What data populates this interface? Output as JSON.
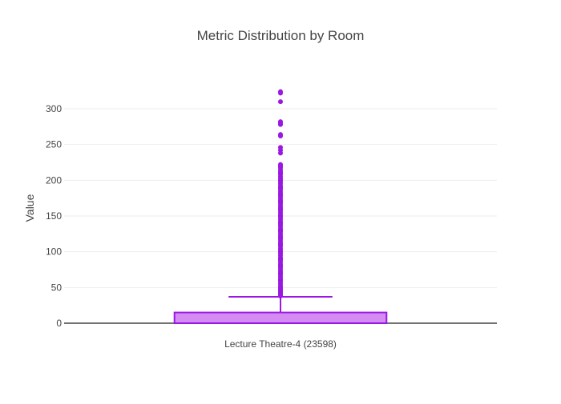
{
  "chart_data": {
    "type": "box",
    "title": "Metric Distribution by Room",
    "xlabel": "",
    "ylabel": "Value",
    "ylim": [
      -5,
      360
    ],
    "yticks": [
      0,
      50,
      100,
      150,
      200,
      250,
      300
    ],
    "grid": true,
    "legend": "none",
    "categories": [
      "Lecture Theatre-4 (23598)"
    ],
    "series": [
      {
        "category": "Lecture Theatre-4 (23598)",
        "min": 0,
        "q1": 0,
        "median": 0,
        "q3": 15,
        "whisker_high": 37,
        "outliers": [
          38,
          40,
          42,
          44,
          46,
          48,
          50,
          52,
          55,
          58,
          60,
          62,
          65,
          68,
          70,
          72,
          75,
          78,
          80,
          82,
          85,
          88,
          90,
          92,
          95,
          98,
          100,
          102,
          105,
          108,
          110,
          112,
          115,
          118,
          120,
          122,
          125,
          128,
          130,
          132,
          135,
          138,
          140,
          142,
          145,
          148,
          150,
          152,
          155,
          158,
          160,
          162,
          165,
          168,
          170,
          172,
          175,
          178,
          180,
          182,
          185,
          188,
          190,
          192,
          195,
          198,
          200,
          202,
          205,
          208,
          210,
          212,
          215,
          218,
          220,
          222,
          238,
          242,
          246,
          262,
          264,
          278,
          280,
          282,
          310,
          322,
          324
        ]
      }
    ],
    "colors": {
      "box_fill": "#d48bf2",
      "box_line": "#9b18e3",
      "grid": "#eeeeee",
      "axis_line": "#444444",
      "text": "#444444"
    }
  }
}
